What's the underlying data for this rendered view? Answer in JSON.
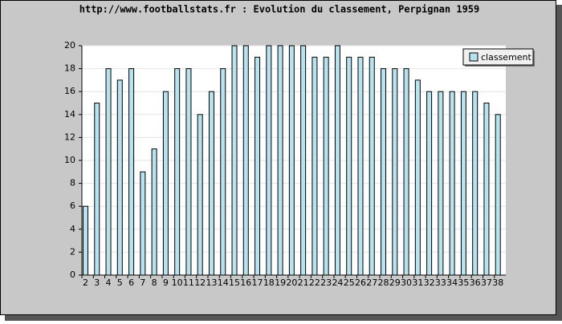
{
  "chart_data": {
    "type": "bar",
    "title": "http://www.footballstats.fr : Evolution du classement, Perpignan 1959",
    "categories": [
      "2",
      "3",
      "4",
      "5",
      "6",
      "7",
      "8",
      "9",
      "10",
      "11",
      "12",
      "13",
      "14",
      "15",
      "16",
      "17",
      "18",
      "19",
      "20",
      "21",
      "22",
      "23",
      "24",
      "25",
      "26",
      "27",
      "28",
      "29",
      "30",
      "31",
      "32",
      "33",
      "34",
      "35",
      "36",
      "37",
      "38"
    ],
    "series": [
      {
        "name": "classement",
        "color": "#b8e2f0",
        "values": [
          6,
          15,
          18,
          17,
          18,
          9,
          11,
          16,
          18,
          18,
          14,
          16,
          18,
          20,
          20,
          19,
          20,
          20,
          20,
          20,
          19,
          19,
          20,
          19,
          19,
          19,
          18,
          18,
          18,
          17,
          16,
          16,
          16,
          16,
          16,
          15,
          14
        ]
      }
    ],
    "ylim": [
      0,
      20
    ],
    "yticks": [
      0,
      2,
      4,
      6,
      8,
      10,
      12,
      14,
      16,
      18,
      20
    ],
    "grid": true,
    "legend": "upper right"
  }
}
